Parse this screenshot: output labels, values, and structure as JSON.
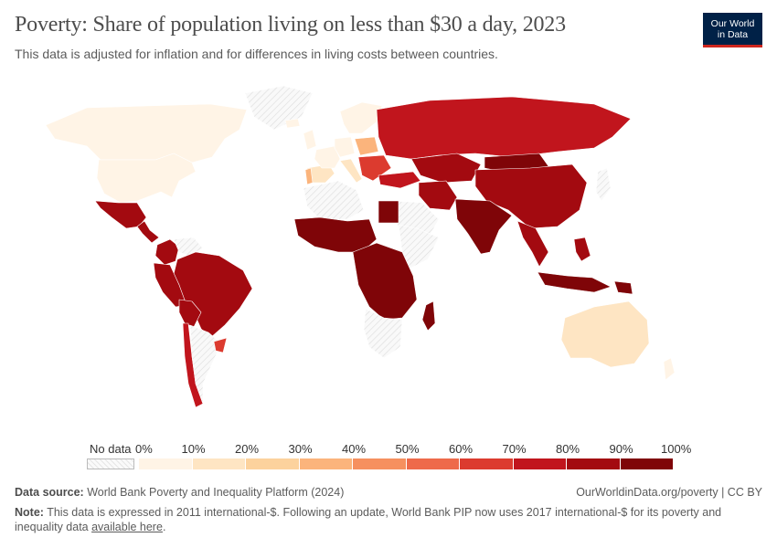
{
  "header": {
    "title": "Poverty: Share of population living on less than $30 a day, 2023",
    "subtitle": "This data is adjusted for inflation and for differences in living costs between countries.",
    "logo_line1": "Our World",
    "logo_line2": "in Data"
  },
  "legend": {
    "no_data_label": "No data",
    "ticks": [
      "0%",
      "10%",
      "20%",
      "30%",
      "40%",
      "50%",
      "60%",
      "70%",
      "80%",
      "90%",
      "100%"
    ],
    "bins": [
      {
        "range": [
          0,
          10
        ],
        "color": "#fff4e6"
      },
      {
        "range": [
          10,
          20
        ],
        "color": "#fee5c3"
      },
      {
        "range": [
          20,
          30
        ],
        "color": "#fcd29d"
      },
      {
        "range": [
          30,
          40
        ],
        "color": "#fbb47c"
      },
      {
        "range": [
          40,
          50
        ],
        "color": "#f6905f"
      },
      {
        "range": [
          50,
          60
        ],
        "color": "#ee6a4a"
      },
      {
        "range": [
          60,
          70
        ],
        "color": "#dc3b2f"
      },
      {
        "range": [
          70,
          80
        ],
        "color": "#c1151d"
      },
      {
        "range": [
          80,
          90
        ],
        "color": "#a30a10"
      },
      {
        "range": [
          90,
          100
        ],
        "color": "#7f0508"
      }
    ],
    "no_data_color": "#eeeeee"
  },
  "footer": {
    "source_label": "Data source:",
    "source_text": " World Bank Poverty and Inequality Platform (2024)",
    "site": "OurWorldinData.org/poverty",
    "separator": " | ",
    "license": "CC BY",
    "note_label": "Note:",
    "note_text": " This data is expressed in 2011 international-$. Following an update, World Bank PIP now uses 2017 international-$ for its poverty and inequality data ",
    "note_link": "available here",
    "note_end": "."
  },
  "regions": [
    {
      "name": "Canada",
      "value": 5
    },
    {
      "name": "United States",
      "value": 8
    },
    {
      "name": "Greenland",
      "value": null
    },
    {
      "name": "Mexico",
      "value": 88
    },
    {
      "name": "Central America",
      "value": 90
    },
    {
      "name": "Colombia",
      "value": 85
    },
    {
      "name": "Venezuela",
      "value": null
    },
    {
      "name": "Brazil",
      "value": 84
    },
    {
      "name": "Peru",
      "value": 88
    },
    {
      "name": "Bolivia",
      "value": 90
    },
    {
      "name": "Chile",
      "value": 75
    },
    {
      "name": "Argentina",
      "value": null
    },
    {
      "name": "Uruguay",
      "value": 70
    },
    {
      "name": "Iceland",
      "value": 2
    },
    {
      "name": "United Kingdom",
      "value": 5
    },
    {
      "name": "Spain",
      "value": 18
    },
    {
      "name": "Portugal",
      "value": 35
    },
    {
      "name": "France",
      "value": 8
    },
    {
      "name": "Germany",
      "value": 5
    },
    {
      "name": "Italy",
      "value": 15
    },
    {
      "name": "Scandinavia",
      "value": 4
    },
    {
      "name": "Poland",
      "value": 40
    },
    {
      "name": "Balkans",
      "value": 65
    },
    {
      "name": "Turkey",
      "value": 78
    },
    {
      "name": "Russia",
      "value": 80
    },
    {
      "name": "Kazakhstan",
      "value": 90
    },
    {
      "name": "Mongolia",
      "value": 92
    },
    {
      "name": "China",
      "value": 87
    },
    {
      "name": "Iran",
      "value": 89
    },
    {
      "name": "Arabian Peninsula",
      "value": null
    },
    {
      "name": "India",
      "value": 98
    },
    {
      "name": "Southeast Asia",
      "value": 90
    },
    {
      "name": "Indonesia",
      "value": 95
    },
    {
      "name": "Philippines",
      "value": 88
    },
    {
      "name": "Japan",
      "value": null
    },
    {
      "name": "North Africa west",
      "value": null
    },
    {
      "name": "Egypt",
      "value": 92
    },
    {
      "name": "West Africa",
      "value": 98
    },
    {
      "name": "Horn of Africa",
      "value": null
    },
    {
      "name": "Central Africa",
      "value": 98
    },
    {
      "name": "Southern Africa",
      "value": null
    },
    {
      "name": "Madagascar",
      "value": 98
    },
    {
      "name": "Australia",
      "value": 12
    },
    {
      "name": "New Zealand",
      "value": 3
    },
    {
      "name": "Papua New Guinea",
      "value": 97
    }
  ]
}
